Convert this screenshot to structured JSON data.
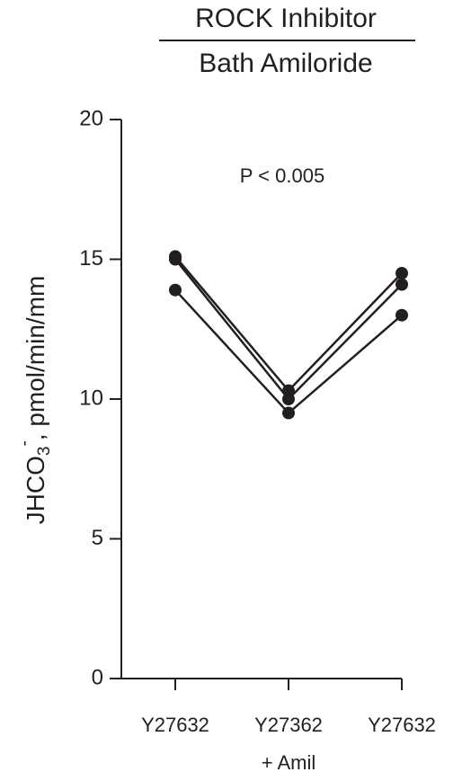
{
  "chart_data": {
    "type": "line",
    "title": [
      "ROCK Inhibitor",
      "Bath Amiloride"
    ],
    "ylabel": {
      "base": "JHCO",
      "sub": "3",
      "sup": "-",
      "rest": ", pmol/min/mm"
    },
    "annotation": "P < 0.005",
    "categories": [
      [
        "Y27632"
      ],
      [
        "Y27362",
        "+ Amil"
      ],
      [
        "Y27632"
      ]
    ],
    "series": [
      {
        "color": "#231f20",
        "values": [
          15.1,
          10.3,
          14.5
        ]
      },
      {
        "color": "#231f20",
        "values": [
          15.0,
          10.0,
          14.1
        ]
      },
      {
        "color": "#231f20",
        "values": [
          13.9,
          9.5,
          13.0
        ]
      }
    ],
    "ylim": [
      0,
      20
    ],
    "yticks": [
      0,
      5,
      10,
      15,
      20
    ],
    "grid": false
  }
}
